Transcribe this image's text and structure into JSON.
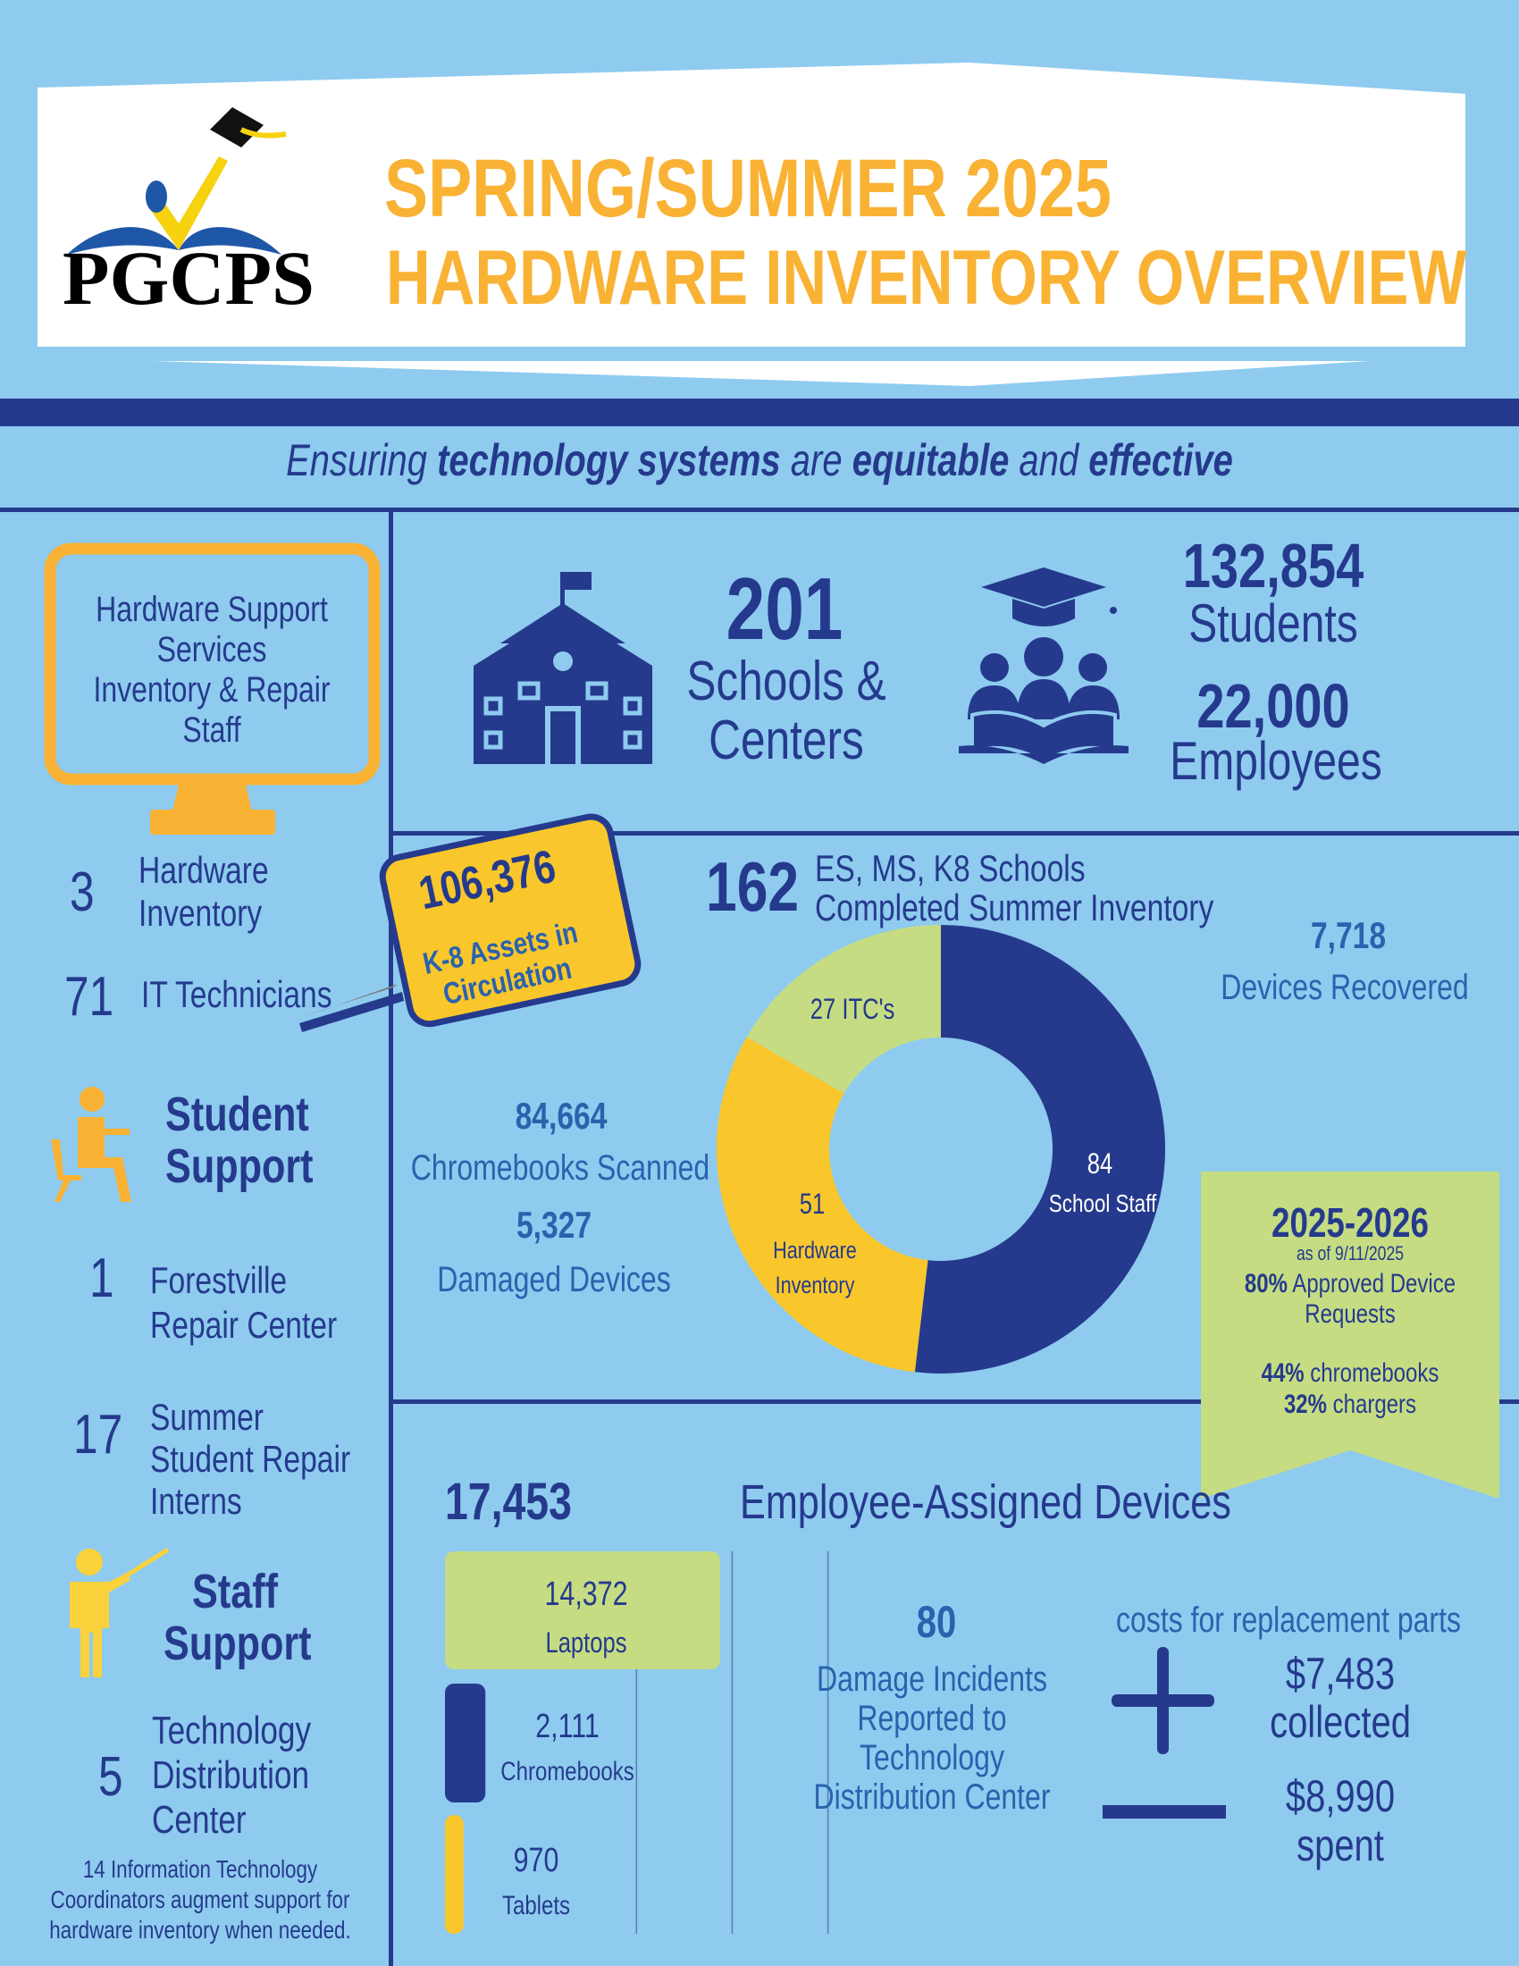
{
  "header": {
    "logo_text": "PGCPS",
    "title_line1": "SPRING/SUMMER 2025",
    "title_line2": "HARDWARE INVENTORY OVERVIEW",
    "tagline": [
      {
        "text": "Ensuring ",
        "bold": false
      },
      {
        "text": "technology systems",
        "bold": true
      },
      {
        "text": " are ",
        "bold": false
      },
      {
        "text": "equitable",
        "bold": true
      },
      {
        "text": " and ",
        "bold": false
      },
      {
        "text": "effective",
        "bold": true
      }
    ]
  },
  "sidebar": {
    "monitor_lines": [
      "Hardware Support",
      "Services",
      "Inventory & Repair",
      "Staff"
    ],
    "hardware_count": "3",
    "hardware_label": [
      "Hardware",
      "Inventory"
    ],
    "tech_count": "71",
    "tech_label": "IT Technicians",
    "student_support": [
      "Student",
      "Support"
    ],
    "repair_count": "1",
    "repair_label": [
      "Forestville",
      "Repair Center"
    ],
    "interns_count": "17",
    "interns_label": [
      "Summer",
      "Student Repair",
      "Interns"
    ],
    "staff_support": [
      "Staff",
      "Support"
    ],
    "tdc_count": "5",
    "tdc_label": [
      "Technology",
      "Distribution",
      "Center"
    ],
    "note": [
      "14 Information Technology",
      "Coordinators augment support for",
      "hardware inventory when needed."
    ]
  },
  "stats": {
    "schools_count": "201",
    "schools_label": [
      "Schools &",
      "Centers"
    ],
    "students_count": "132,854",
    "students_label": "Students",
    "employees_count": "22,000",
    "employees_label": "Employees"
  },
  "inventory": {
    "assets_count": "106,376",
    "assets_label": [
      "K-8 Assets in",
      "Circulation"
    ],
    "schools_completed": "162",
    "schools_completed_label": [
      "ES, MS, K8 Schools",
      "Completed Summer Inventory"
    ],
    "devices_recovered": "7,718",
    "devices_recovered_label": "Devices Recovered",
    "chromebooks_scanned": "84,664",
    "chromebooks_scanned_label": "Chromebooks Scanned",
    "damaged": "5,327",
    "damaged_label": "Damaged Devices"
  },
  "ribbon": {
    "year": "2025-2026",
    "as_of": "as of 9/11/2025",
    "approved_pct": "80%",
    "approved_label": " Approved Device",
    "approved_label2": "Requests",
    "chromebooks_pct": "44%",
    "chromebooks_label": " chromebooks",
    "chargers_pct": "32%",
    "chargers_label": " chargers"
  },
  "employee": {
    "total": "17,453",
    "title": "Employee-Assigned Devices",
    "incidents": "80",
    "incidents_label": [
      "Damage Incidents",
      "Reported to",
      "Technology",
      "Distribution Center"
    ],
    "costs_title": "costs for replacement parts",
    "collected": "$7,483",
    "collected_label": "collected",
    "spent": "$8,990",
    "spent_label": "spent"
  },
  "colors": {
    "background": "#8ecbef",
    "navy": "#253a8c",
    "yellow": "#f9c72c",
    "orange": "#f9b233",
    "green": "#c5dc83"
  },
  "chart_data": [
    {
      "type": "pie",
      "donut": true,
      "categories": [
        "School Staff",
        "Hardware Inventory",
        "ITC's"
      ],
      "values": [
        84,
        51,
        27
      ],
      "value_labels": [
        "84",
        "51",
        "27 ITC's"
      ],
      "colors": [
        "#253a8c",
        "#f9c72c",
        "#c5dc83"
      ]
    },
    {
      "type": "bar",
      "orientation": "horizontal",
      "categories": [
        "Laptops",
        "Chromebooks",
        "Tablets"
      ],
      "values": [
        14372,
        2111,
        970
      ],
      "value_labels": [
        "14,372",
        "2,111",
        "970"
      ],
      "colors": [
        "#c5dc83",
        "#253a8c",
        "#f9c72c"
      ],
      "grid": true
    }
  ]
}
